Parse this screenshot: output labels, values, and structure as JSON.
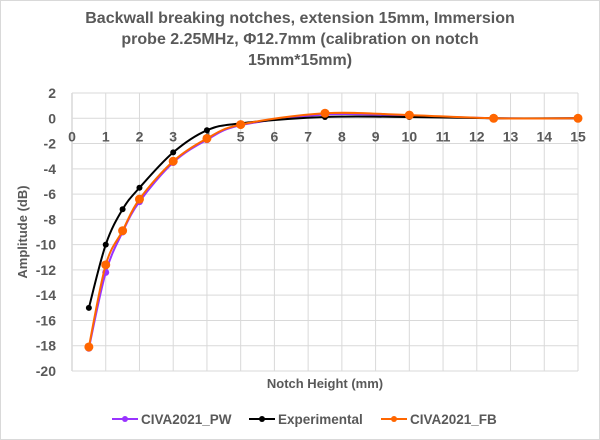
{
  "chart_data": {
    "type": "line",
    "title": "Backwall breaking notches, extension 15mm, Immersion probe 2.25MHz, Φ12.7mm (calibration on notch 15mm*15mm)",
    "title_lines": [
      "Backwall breaking notches, extension 15mm, Immersion",
      "probe 2.25MHz, Φ12.7mm (calibration on notch",
      "15mm*15mm)"
    ],
    "xlabel": "Notch Height (mm)",
    "ylabel": "Amplitude (dB)",
    "xlim": [
      0,
      15
    ],
    "ylim": [
      -20,
      2
    ],
    "xticks": [
      "0",
      "1",
      "2",
      "3",
      "4",
      "5",
      "6",
      "7",
      "8",
      "9",
      "10",
      "11",
      "12",
      "13",
      "14",
      "15"
    ],
    "yticks": [
      "2",
      "0",
      "-2",
      "-4",
      "-6",
      "-8",
      "-10",
      "-12",
      "-14",
      "-16",
      "-18",
      "-20"
    ],
    "grid": true,
    "legend_position": "bottom",
    "x": [
      0.5,
      1,
      1.5,
      2,
      3,
      4,
      5,
      7.5,
      10,
      12.5,
      15
    ],
    "series": [
      {
        "name": "CIVA2021_PW",
        "color": "#9933ff",
        "values": [
          -18.2,
          -12.2,
          -9.0,
          -6.6,
          -3.5,
          -1.7,
          -0.55,
          0.3,
          0.2,
          0.0,
          0.0
        ]
      },
      {
        "name": "Experimental",
        "color": "#000000",
        "values": [
          -15.0,
          -10.0,
          -7.2,
          -5.5,
          -2.7,
          -0.95,
          -0.4,
          0.1,
          0.1,
          0.0,
          0.0
        ]
      },
      {
        "name": "CIVA2021_FB",
        "color": "#ff6600",
        "values": [
          -18.1,
          -11.6,
          -8.9,
          -6.4,
          -3.4,
          -1.6,
          -0.5,
          0.4,
          0.25,
          0.0,
          0.0
        ]
      }
    ]
  }
}
